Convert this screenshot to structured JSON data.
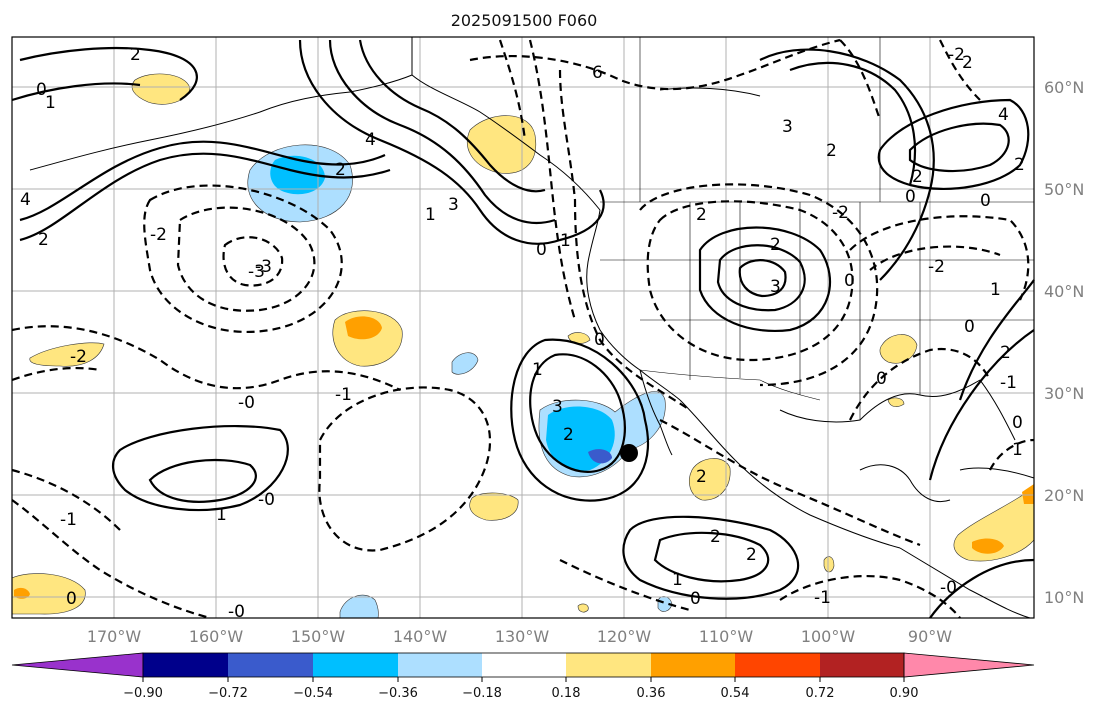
{
  "title": "2025091500 F060",
  "lat_labels": [
    "60°N",
    "50°N",
    "40°N",
    "30°N",
    "20°N",
    "10°N"
  ],
  "lon_labels": [
    "170°W",
    "160°W",
    "150°W",
    "140°W",
    "130°W",
    "120°W",
    "110°W",
    "100°W",
    "90°W"
  ],
  "colorbar": {
    "tick_labels": [
      "−0.90",
      "−0.72",
      "−0.54",
      "−0.36",
      "−0.18",
      "0.18",
      "0.36",
      "0.54",
      "0.72",
      "0.90"
    ],
    "colors": [
      "#9932CC",
      "#00008B",
      "#3A5BCC",
      "#00BFFF",
      "#ADDFFF",
      "#FFFFFF",
      "#FFE680",
      "#FFA000",
      "#FF4500",
      "#B22222",
      "#FF88AA"
    ]
  },
  "contour_labels": [
    "2",
    "1",
    "0",
    "4",
    "2",
    "1",
    "3",
    "4",
    "2",
    "0",
    "-3",
    "-2",
    "-1",
    "-0",
    "2",
    "3",
    "1",
    "0",
    "-0",
    "-1",
    "-2",
    "-3",
    "6",
    "3",
    "4",
    "0",
    "2",
    "2",
    "3",
    "2",
    "0",
    "0",
    "-2",
    "-2",
    "0",
    "1",
    "2",
    "0",
    "1",
    "2",
    "-0",
    "2",
    "1",
    "0",
    "-2",
    "2",
    "-1",
    "1",
    "2",
    "-0",
    "0",
    "0",
    "-1",
    "1",
    "2",
    "2"
  ],
  "marker": "storm-center-dot"
}
